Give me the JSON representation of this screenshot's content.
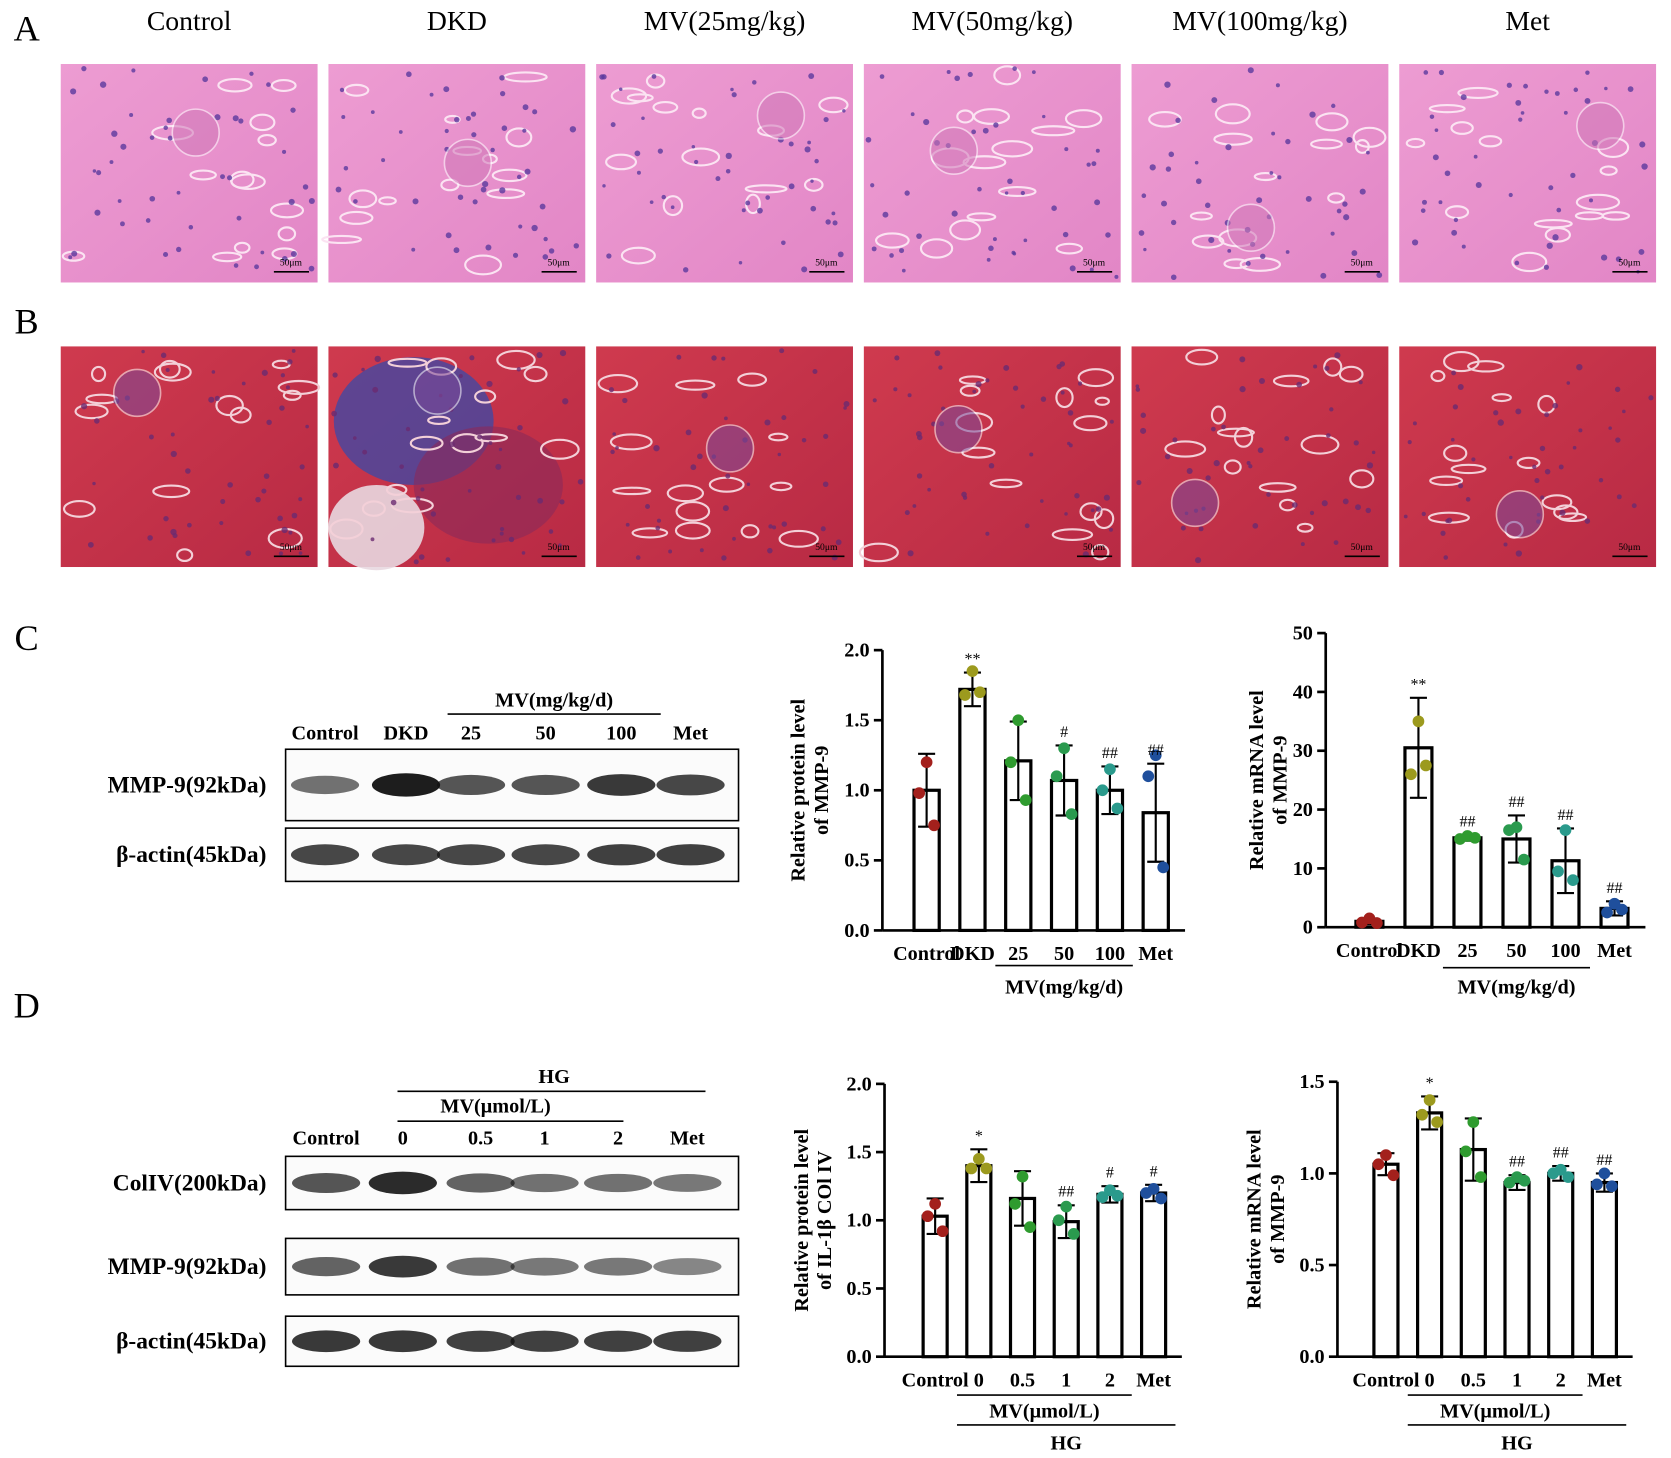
{
  "panels": {
    "labels": [
      "A",
      "B",
      "C",
      "D"
    ],
    "histology_columns": [
      "Control",
      "DKD",
      "MV(25mg/kg)",
      "MV(50mg/kg)",
      "MV(100mg/kg)",
      "Met"
    ],
    "scale_bar": "50μm"
  },
  "blot_c": {
    "group": "MV(mg/kg/d)",
    "lanes": [
      "Control",
      "DKD",
      "25",
      "50",
      "100",
      "Met"
    ],
    "rows": [
      "MMP-9(92kDa)",
      "β-actin(45kDa)"
    ]
  },
  "blot_d": {
    "group_outer": "HG",
    "group_inner": "MV(μmol/L)",
    "lanes": [
      "Control",
      "0",
      "0.5",
      "1",
      "2",
      "Met"
    ],
    "rows": [
      "ColIV(200kDa)",
      "MMP-9(92kDa)",
      "β-actin(45kDa)"
    ]
  },
  "chart_data": [
    {
      "type": "bar",
      "ylabel": [
        "Relative protein level",
        "of MMP-9"
      ],
      "categories": [
        "Control",
        "DKD",
        "25",
        "50",
        "100",
        "Met"
      ],
      "values": [
        1.0,
        1.72,
        1.21,
        1.07,
        1.0,
        0.84
      ],
      "errors": [
        0.26,
        0.12,
        0.28,
        0.25,
        0.17,
        0.35
      ],
      "points": [
        [
          1.2,
          0.98,
          0.75
        ],
        [
          1.85,
          1.68,
          1.7
        ],
        [
          1.5,
          1.2,
          0.93
        ],
        [
          1.3,
          1.1,
          0.83
        ],
        [
          1.15,
          1.0,
          0.87
        ],
        [
          1.25,
          1.1,
          0.45
        ]
      ],
      "colors": [
        "#a3201c",
        "#9c9a1e",
        "#2f9b2f",
        "#2a9a4e",
        "#2a9a8c",
        "#1f4f9c"
      ],
      "annotations": [
        null,
        "**",
        null,
        "#",
        "##",
        "##"
      ],
      "group_labels": [
        "MV(mg/kg/d)"
      ],
      "ylim": [
        0,
        2
      ],
      "yticks": [
        {
          "value": 0,
          "label": "0.0"
        },
        0.5,
        {
          "value": 1,
          "label": "1.0"
        },
        1.5,
        {
          "value": 2,
          "label": "2.0"
        }
      ]
    },
    {
      "type": "bar",
      "ylabel": [
        "Relative mRNA level",
        "of MMP-9"
      ],
      "categories": [
        "Control",
        "DKD",
        "25",
        "50",
        "100",
        "Met"
      ],
      "values": [
        1.0,
        30.5,
        15.2,
        15.0,
        11.3,
        3.2
      ],
      "errors": [
        0.5,
        8.5,
        0.5,
        4.0,
        5.5,
        1.2
      ],
      "points": [
        [
          1.5,
          0.8,
          0.7
        ],
        [
          35,
          26,
          27.5
        ],
        [
          15.5,
          15,
          15.2
        ],
        [
          17,
          16.5,
          11.5
        ],
        [
          16.5,
          9.5,
          8
        ],
        [
          4,
          2.5,
          3
        ]
      ],
      "colors": [
        "#a3201c",
        "#9c9a1e",
        "#2f9b2f",
        "#2a9a4e",
        "#2a9a8c",
        "#1f4f9c"
      ],
      "annotations": [
        null,
        "**",
        "##",
        "##",
        "##",
        "##"
      ],
      "group_labels": [
        "MV(mg/kg/d)"
      ],
      "ylim": [
        0,
        50
      ],
      "yticks": [
        0,
        10,
        20,
        30,
        40,
        50
      ]
    },
    {
      "type": "bar",
      "ylabel": [
        "Relative protein level",
        "of IL-1β COl IV"
      ],
      "categories": [
        "Control",
        "0",
        "0.5",
        "1",
        "2",
        "Met"
      ],
      "values": [
        1.03,
        1.4,
        1.16,
        0.99,
        1.19,
        1.2
      ],
      "errors": [
        0.13,
        0.12,
        0.2,
        0.12,
        0.06,
        0.06
      ],
      "points": [
        [
          1.12,
          1.03,
          0.92
        ],
        [
          1.45,
          1.38,
          1.38
        ],
        [
          1.32,
          1.12,
          0.95
        ],
        [
          1.1,
          1.0,
          0.9
        ],
        [
          1.22,
          1.17,
          1.18
        ],
        [
          1.23,
          1.2,
          1.16
        ]
      ],
      "colors": [
        "#a3201c",
        "#9c9a1e",
        "#2f9b2f",
        "#2a9a4e",
        "#2a9a8c",
        "#1f4f9c"
      ],
      "annotations": [
        null,
        "*",
        null,
        "##",
        "#",
        "#"
      ],
      "group_labels": [
        "MV(μmol/L)",
        "HG"
      ],
      "ylim": [
        0,
        2
      ],
      "yticks": [
        {
          "value": 0,
          "label": "0.0"
        },
        0.5,
        {
          "value": 1,
          "label": "1.0"
        },
        1.5,
        {
          "value": 2,
          "label": "2.0"
        }
      ]
    },
    {
      "type": "bar",
      "ylabel": [
        "Relative mRNA level",
        "of MMP-9"
      ],
      "categories": [
        "Control",
        "0",
        "0.5",
        "1",
        "2",
        "Met"
      ],
      "values": [
        1.05,
        1.33,
        1.13,
        0.95,
        1.0,
        0.95
      ],
      "errors": [
        0.06,
        0.09,
        0.17,
        0.04,
        0.04,
        0.05
      ],
      "points": [
        [
          1.1,
          1.05,
          0.99
        ],
        [
          1.4,
          1.32,
          1.28
        ],
        [
          1.28,
          1.12,
          0.98
        ],
        [
          0.98,
          0.95,
          0.96
        ],
        [
          1.02,
          1.0,
          0.98
        ],
        [
          1.0,
          0.94,
          0.93
        ]
      ],
      "colors": [
        "#a3201c",
        "#9c9a1e",
        "#2f9b2f",
        "#2a9a4e",
        "#2a9a8c",
        "#1f4f9c"
      ],
      "annotations": [
        null,
        "*",
        null,
        "##",
        "##",
        "##"
      ],
      "group_labels": [
        "MV(μmol/L)",
        "HG"
      ],
      "ylim": [
        0,
        1.5
      ],
      "yticks": [
        {
          "value": 0,
          "label": "0.0"
        },
        0.5,
        {
          "value": 1,
          "label": "1.0"
        },
        1.5
      ]
    }
  ]
}
